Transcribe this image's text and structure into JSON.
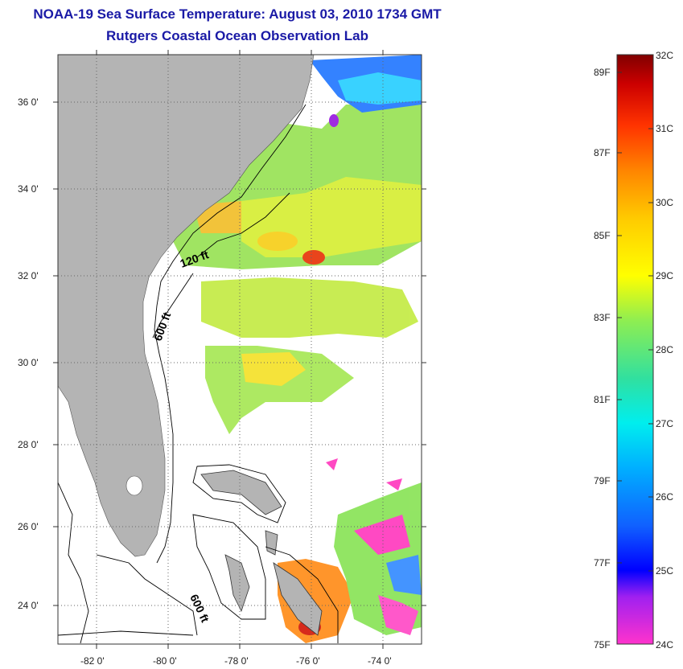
{
  "title_line1": "NOAA-19 Sea Surface Temperature:  August 03, 2010 1734 GMT",
  "title_line2": "Rutgers Coastal Ocean Observation Lab",
  "lat_ticks": [
    "36 0'",
    "34 0'",
    "32 0'",
    "30 0'",
    "28 0'",
    "26 0'",
    "24 0'"
  ],
  "lon_ticks": [
    "-82 0'",
    "-80 0'",
    "-78 0'",
    "-76 0'",
    "-74 0'"
  ],
  "contour_labels": [
    "120 ft",
    "600 ft",
    "600 ft"
  ],
  "colorbar": {
    "fahrenheit": [
      "89F",
      "87F",
      "85F",
      "83F",
      "81F",
      "79F",
      "77F",
      "75F"
    ],
    "celsius": [
      "32C",
      "31C",
      "30C",
      "29C",
      "28C",
      "27C",
      "26C",
      "25C",
      "24C"
    ],
    "range_c": [
      24,
      32
    ]
  },
  "colors": {
    "land": "#b4b4b4",
    "ocean": "#ffffff",
    "title": "#1a1aa6"
  }
}
